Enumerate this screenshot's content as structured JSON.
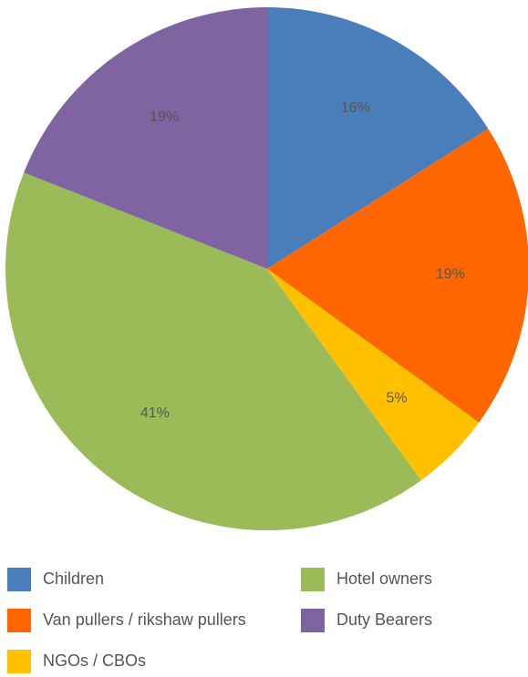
{
  "chart_data": {
    "type": "pie",
    "series": [
      {
        "name": "Children",
        "color": "#4a7ebb",
        "values": [
          16
        ],
        "value_labels": [
          "16%"
        ]
      },
      {
        "name": "Van pullers / rikshaw pullers",
        "color": "#ff6600",
        "values": [
          19
        ],
        "value_labels": [
          "19%"
        ]
      },
      {
        "name": "NGOs / CBOs",
        "color": "#ffc000",
        "values": [
          5
        ],
        "value_labels": [
          "5%"
        ]
      },
      {
        "name": "Hotel owners",
        "color": "#9bbb59",
        "values": [
          41
        ],
        "value_labels": [
          "41%"
        ]
      },
      {
        "name": "Duty Bearers",
        "color": "#8064a2",
        "values": [
          19
        ],
        "value_labels": [
          "19%"
        ]
      }
    ]
  }
}
